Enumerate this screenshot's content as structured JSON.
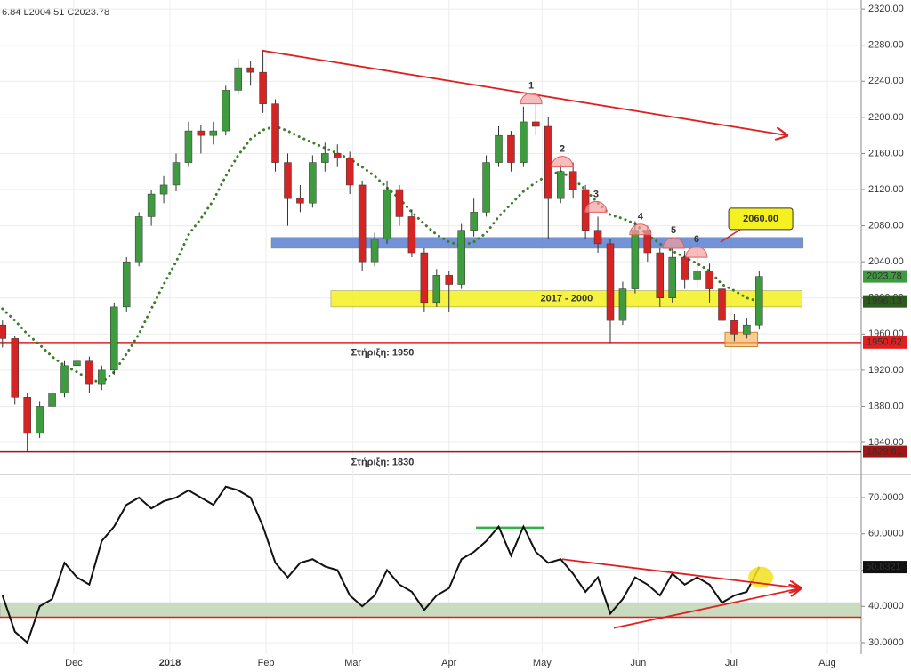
{
  "chart_data": [
    {
      "type": "candlestick",
      "header": "6.84  L2004.51  C2023.78",
      "x": [
        7,
        11,
        15,
        19,
        23,
        27,
        31,
        35,
        39,
        43,
        47,
        51,
        55,
        59,
        63,
        67,
        71,
        75,
        79,
        83,
        87,
        91,
        95,
        99,
        103,
        107,
        111,
        115,
        119,
        123,
        127,
        131,
        135,
        139,
        143,
        147,
        151,
        155,
        159,
        163,
        167,
        171,
        175,
        179,
        183,
        187,
        191,
        195,
        199,
        203,
        207,
        211,
        215,
        219,
        223,
        227,
        231,
        235,
        239,
        243,
        247,
        251
      ],
      "candles": [
        [
          1970,
          1975,
          1945,
          1955
        ],
        [
          1955,
          1958,
          1882,
          1890
        ],
        [
          1890,
          1895,
          1829,
          1850
        ],
        [
          1850,
          1885,
          1845,
          1880
        ],
        [
          1880,
          1900,
          1875,
          1895
        ],
        [
          1895,
          1930,
          1890,
          1925
        ],
        [
          1925,
          1945,
          1920,
          1930
        ],
        [
          1930,
          1935,
          1895,
          1905
        ],
        [
          1905,
          1925,
          1898,
          1920
        ],
        [
          1920,
          1995,
          1915,
          1990
        ],
        [
          1990,
          2045,
          1985,
          2040
        ],
        [
          2040,
          2095,
          2035,
          2090
        ],
        [
          2090,
          2120,
          2080,
          2115
        ],
        [
          2115,
          2135,
          2105,
          2125
        ],
        [
          2125,
          2160,
          2118,
          2150
        ],
        [
          2150,
          2195,
          2145,
          2185
        ],
        [
          2185,
          2192,
          2160,
          2180
        ],
        [
          2180,
          2195,
          2170,
          2185
        ],
        [
          2185,
          2235,
          2180,
          2230
        ],
        [
          2230,
          2265,
          2225,
          2255
        ],
        [
          2255,
          2262,
          2235,
          2250
        ],
        [
          2250,
          2275,
          2205,
          2215
        ],
        [
          2215,
          2220,
          2140,
          2150
        ],
        [
          2150,
          2160,
          2080,
          2110
        ],
        [
          2110,
          2125,
          2095,
          2105
        ],
        [
          2105,
          2158,
          2100,
          2150
        ],
        [
          2150,
          2172,
          2140,
          2160
        ],
        [
          2160,
          2170,
          2145,
          2155
        ],
        [
          2155,
          2162,
          2115,
          2125
        ],
        [
          2125,
          2130,
          2030,
          2040
        ],
        [
          2040,
          2072,
          2035,
          2065
        ],
        [
          2065,
          2130,
          2060,
          2120
        ],
        [
          2120,
          2125,
          2080,
          2090
        ],
        [
          2090,
          2098,
          2045,
          2050
        ],
        [
          2050,
          2055,
          1985,
          1995
        ],
        [
          1995,
          2032,
          1990,
          2025
        ],
        [
          2025,
          2030,
          1985,
          2015
        ],
        [
          2015,
          2082,
          2010,
          2075
        ],
        [
          2075,
          2110,
          2068,
          2095
        ],
        [
          2095,
          2158,
          2090,
          2150
        ],
        [
          2150,
          2190,
          2145,
          2180
        ],
        [
          2180,
          2185,
          2140,
          2150
        ],
        [
          2150,
          2212,
          2145,
          2195
        ],
        [
          2195,
          2215,
          2180,
          2190
        ],
        [
          2190,
          2200,
          2065,
          2110
        ],
        [
          2110,
          2148,
          2105,
          2140
        ],
        [
          2140,
          2150,
          2110,
          2120
        ],
        [
          2120,
          2125,
          2065,
          2075
        ],
        [
          2075,
          2090,
          2050,
          2060
        ],
        [
          2060,
          2065,
          1950,
          1975
        ],
        [
          1975,
          2018,
          1970,
          2010
        ],
        [
          2010,
          2085,
          2005,
          2075
        ],
        [
          2075,
          2080,
          2040,
          2050
        ],
        [
          2050,
          2055,
          1990,
          2000
        ],
        [
          2000,
          2055,
          1995,
          2045
        ],
        [
          2045,
          2052,
          2010,
          2020
        ],
        [
          2020,
          2070,
          2012,
          2030
        ],
        [
          2030,
          2038,
          1995,
          2010
        ],
        [
          2010,
          2015,
          1965,
          1975
        ],
        [
          1975,
          1982,
          1952,
          1960
        ],
        [
          1960,
          1978,
          1955,
          1970
        ],
        [
          1970,
          2030,
          1965,
          2023.78
        ]
      ],
      "colors": {
        "up": "#3f9b3f",
        "down": "#d42424"
      },
      "overlay": {
        "color": "#3c7d2b",
        "values": [
          1988,
          1975,
          1960,
          1948,
          1935,
          1925,
          1918,
          1910,
          1906,
          1918,
          1938,
          1960,
          1988,
          2015,
          2040,
          2070,
          2088,
          2108,
          2135,
          2158,
          2176,
          2186,
          2190,
          2185,
          2178,
          2172,
          2166,
          2160,
          2154,
          2145,
          2135,
          2122,
          2110,
          2095,
          2082,
          2070,
          2062,
          2058,
          2062,
          2072,
          2090,
          2104,
          2118,
          2128,
          2136,
          2140,
          2132,
          2120,
          2105,
          2092,
          2088,
          2082,
          2070,
          2060,
          2052,
          2045,
          2038,
          2030,
          2015,
          2008,
          2000,
          1996.13
        ]
      },
      "xlim": [
        6.2,
        283.9
      ],
      "xticks": [
        {
          "value": 30,
          "label": "Dec"
        },
        {
          "value": 61,
          "label": "2018"
        },
        {
          "value": 92,
          "label": "Feb"
        },
        {
          "value": 120,
          "label": "Mar"
        },
        {
          "value": 151,
          "label": "Apr"
        },
        {
          "value": 181,
          "label": "May"
        },
        {
          "value": 212,
          "label": "Jun"
        },
        {
          "value": 242,
          "label": "Jul"
        },
        {
          "value": 273,
          "label": "Aug"
        }
      ],
      "ylim": [
        1807.5,
        2330
      ],
      "yticks": [
        {
          "value": 1840,
          "label": "1840.00"
        },
        {
          "value": 1880,
          "label": "1880.00"
        },
        {
          "value": 1920,
          "label": "1920.00"
        },
        {
          "value": 1960,
          "label": "1960.00"
        },
        {
          "value": 2000,
          "label": "2000.00"
        },
        {
          "value": 2040,
          "label": "2040.00"
        },
        {
          "value": 2080,
          "label": "2080.00"
        },
        {
          "value": 2120,
          "label": "2120.00"
        },
        {
          "value": 2160,
          "label": "2160.00"
        },
        {
          "value": 2200,
          "label": "2200.00"
        },
        {
          "value": 2240,
          "label": "2240.00"
        },
        {
          "value": 2280,
          "label": "2280.00"
        },
        {
          "value": 2320,
          "label": "2320.00"
        }
      ],
      "grid": true,
      "supports": [
        {
          "value": 1950.62,
          "label": "Στήριξη: 1950",
          "color": "#e02020"
        },
        {
          "value": 1829.61,
          "label": "Στήριξη: 1830",
          "color": "#a01515"
        }
      ],
      "zones": [
        {
          "range": [
            2055,
            2067
          ],
          "x": [
            93.7,
            265.2
          ],
          "color": "#5b7fd0"
        },
        {
          "range": [
            1990,
            2008
          ],
          "x": [
            112.9,
            264.9
          ],
          "color": "#f5f020",
          "label": "2017 - 2000"
        }
      ],
      "trendline": {
        "x": [
          90.8,
          260
        ],
        "y": [
          2274,
          2180
        ],
        "color": "#e02020"
      },
      "callout": {
        "value": 2060,
        "label": "2060.00",
        "x": 251.5,
        "pointer": [
          238.6,
          2062
        ]
      },
      "peaks": [
        {
          "label": "1",
          "x": 177.5,
          "y": 2215
        },
        {
          "label": "2",
          "x": 187.5,
          "y": 2145
        },
        {
          "label": "3",
          "x": 198.4,
          "y": 2095
        },
        {
          "label": "4",
          "x": 212.7,
          "y": 2070
        },
        {
          "label": "5",
          "x": 223.4,
          "y": 2055
        },
        {
          "label": "6",
          "x": 230.8,
          "y": 2045
        }
      ],
      "box": {
        "x": [
          240,
          250.5
        ],
        "y": [
          1946,
          1962
        ]
      }
    },
    {
      "type": "line",
      "color": "#111111",
      "values": [
        43,
        33,
        30,
        40,
        42,
        52,
        48,
        46,
        58,
        62,
        68,
        70,
        67,
        69,
        70,
        72,
        70,
        68,
        73,
        72,
        70,
        62,
        52,
        48,
        52,
        53,
        51,
        50,
        43,
        40,
        43,
        50,
        46,
        44,
        39,
        43,
        45,
        53,
        55,
        58,
        62,
        54,
        62,
        55,
        52,
        53,
        49,
        44,
        48,
        38,
        42,
        48,
        46,
        43,
        49,
        46,
        48,
        46,
        41,
        43,
        44,
        50.8321
      ],
      "ylim": [
        26.8,
        75.4
      ],
      "yticks": [
        {
          "value": 30,
          "label": "30.0000"
        },
        {
          "value": 40,
          "label": "40.0000"
        },
        {
          "value": 50,
          "label": "50.0000"
        },
        {
          "value": 60,
          "label": "60.0000"
        },
        {
          "value": 70,
          "label": "70.0000"
        }
      ],
      "band": {
        "range": [
          37,
          41
        ],
        "color": "#c9dcc0",
        "line": 37,
        "line_color": "#e02020"
      },
      "level": {
        "x": [
          159.7,
          181.8
        ],
        "y": 61.7,
        "color": "#2fb24a"
      },
      "trendlines": [
        {
          "x": [
            187.5,
            264.4
          ],
          "y": [
            53,
            45
          ]
        },
        {
          "x": [
            204.1,
            264.4
          ],
          "y": [
            34,
            45
          ]
        }
      ],
      "trend_color": "#e02020",
      "marker": {
        "x": 251.5,
        "y": 48,
        "color": "#f5e020"
      }
    }
  ]
}
